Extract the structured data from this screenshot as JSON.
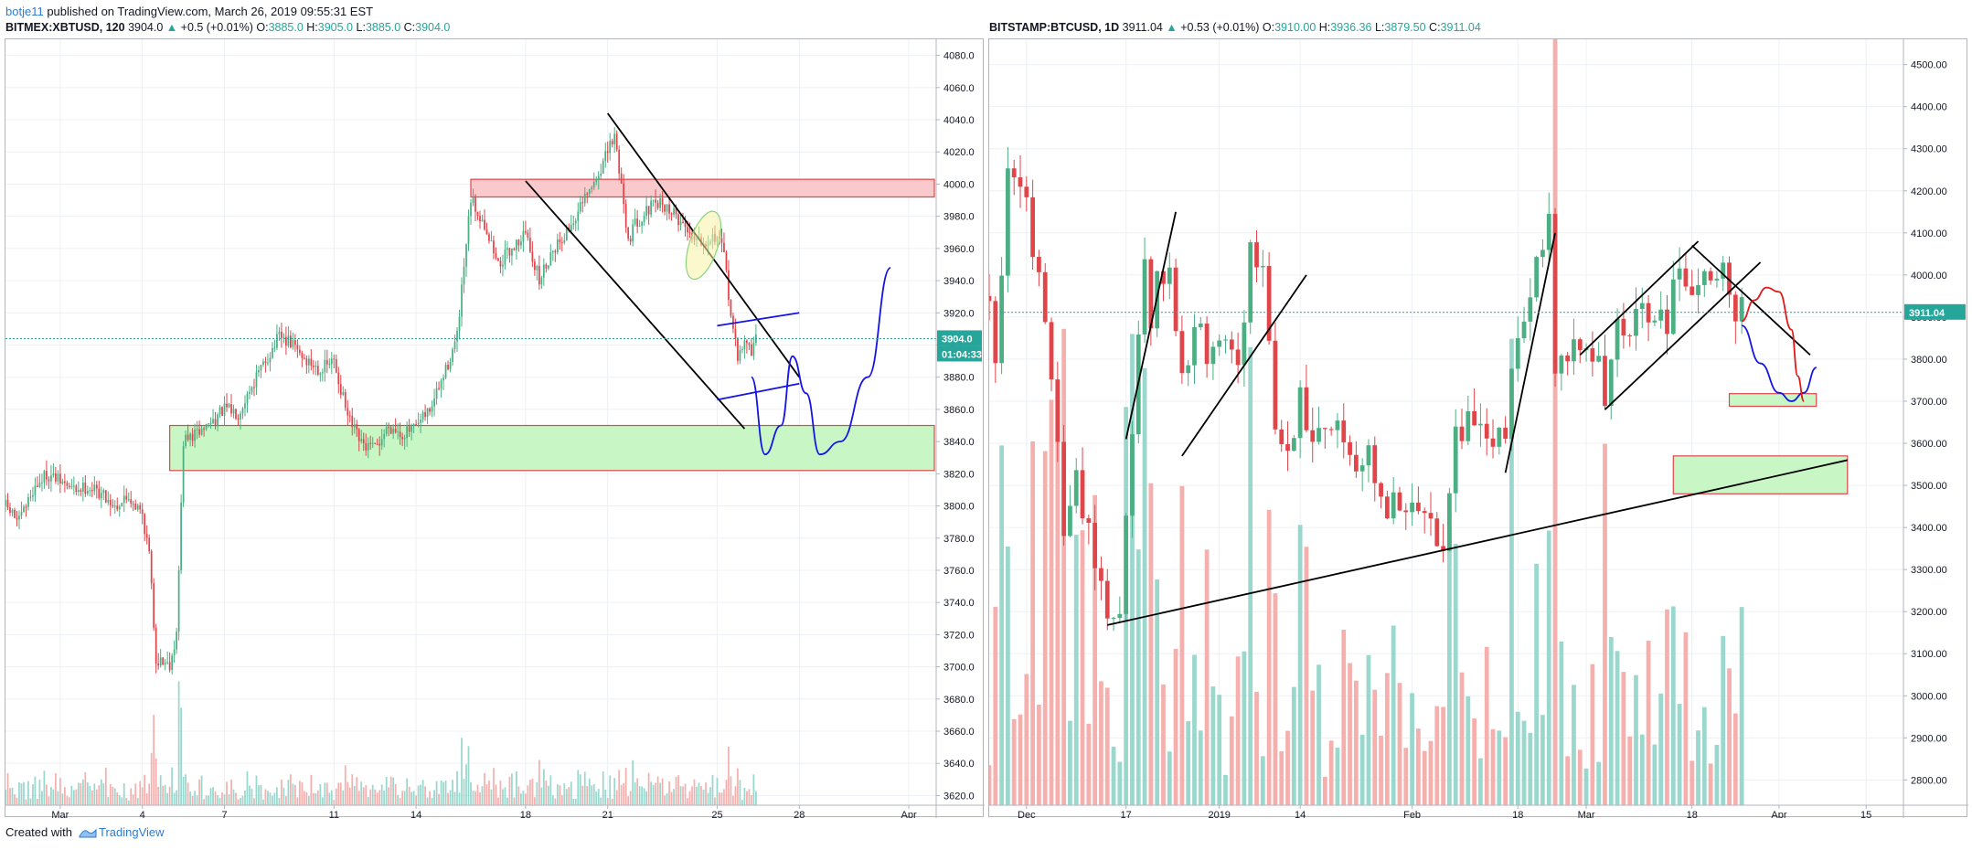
{
  "header": {
    "author": "botje11",
    "published_text": "published on TradingView.com, March 26, 2019 09:55:31 EST"
  },
  "footer": {
    "created_with": "Created with",
    "brand": "TradingView",
    "logo_icon": "tradingview-logo-icon"
  },
  "colors": {
    "up": "#26a69a",
    "down": "#ef5350",
    "up_bar": "#4caf83",
    "down_bar": "#e0454a",
    "grid": "#edf0f4",
    "border": "#b2b5be",
    "resistance_zone": "#f9c9cc",
    "support_zone": "#c8f7c5",
    "accent_blue": "#1414e6",
    "accent_red": "#e01818"
  },
  "chart_data": [
    {
      "type": "candlestick",
      "legend": {
        "symbol": "BITMEX:XBTUSD, 120",
        "last": "3904.0",
        "arrow": "▲",
        "change": "+0.5 (+0.01%)",
        "o_label": "O:",
        "o": "3885.0",
        "h_label": "H:",
        "h": "3905.0",
        "l_label": "L:",
        "l": "3885.0",
        "c_label": "C:",
        "c": "3904.0"
      },
      "x_tick_labels": [
        "Mar",
        "4",
        "7",
        "11",
        "14",
        "18",
        "21",
        "25",
        "28",
        "Apr"
      ],
      "x_tick_dates": [
        "2019-03-01",
        "2019-03-04",
        "2019-03-07",
        "2019-03-11",
        "2019-03-14",
        "2019-03-18",
        "2019-03-21",
        "2019-03-25",
        "2019-03-28",
        "2019-04-01"
      ],
      "y_ticks": [
        3620,
        3640,
        3660,
        3680,
        3700,
        3720,
        3740,
        3760,
        3780,
        3800,
        3820,
        3840,
        3860,
        3880,
        3900,
        3920,
        3940,
        3960,
        3980,
        4000,
        4020,
        4040,
        4060,
        4080
      ],
      "y_tick_labels": [
        "3620.0",
        "3640.0",
        "3660.0",
        "3680.0",
        "3700.0",
        "3720.0",
        "3740.0",
        "3760.0",
        "3780.0",
        "3800.0",
        "3820.0",
        "3840.0",
        "3860.0",
        "3880.0",
        "3900.0",
        "3920.0",
        "3940.0",
        "3960.0",
        "3980.0",
        "4000.0",
        "4020.0",
        "4040.0",
        "4060.0",
        "4080.0"
      ],
      "ylim": [
        3614,
        4090
      ],
      "xlim": [
        "2019-02-27",
        "2019-04-02"
      ],
      "last_price_label": "3904.0",
      "countdown_label": "01:04:33",
      "price_path": [
        [
          "2019-02-27 00:00",
          3800
        ],
        [
          "2019-02-27 12:00",
          3790
        ],
        [
          "2019-02-28 00:00",
          3810
        ],
        [
          "2019-02-28 12:00",
          3820
        ],
        [
          "2019-03-01 00:00",
          3815
        ],
        [
          "2019-03-01 12:00",
          3810
        ],
        [
          "2019-03-02 00:00",
          3812
        ],
        [
          "2019-03-02 12:00",
          3808
        ],
        [
          "2019-03-03 00:00",
          3800
        ],
        [
          "2019-03-03 12:00",
          3806
        ],
        [
          "2019-03-04 00:00",
          3795
        ],
        [
          "2019-03-04 06:00",
          3770
        ],
        [
          "2019-03-04 12:00",
          3705
        ],
        [
          "2019-03-05 00:00",
          3702
        ],
        [
          "2019-03-05 06:00",
          3720
        ],
        [
          "2019-03-05 12:00",
          3840
        ],
        [
          "2019-03-06 00:00",
          3845
        ],
        [
          "2019-03-06 12:00",
          3852
        ],
        [
          "2019-03-07 00:00",
          3860
        ],
        [
          "2019-03-07 12:00",
          3858
        ],
        [
          "2019-03-08 00:00",
          3875
        ],
        [
          "2019-03-08 12:00",
          3890
        ],
        [
          "2019-03-09 00:00",
          3905
        ],
        [
          "2019-03-09 12:00",
          3900
        ],
        [
          "2019-03-10 00:00",
          3890
        ],
        [
          "2019-03-10 12:00",
          3885
        ],
        [
          "2019-03-11 00:00",
          3890
        ],
        [
          "2019-03-11 12:00",
          3855
        ],
        [
          "2019-03-12 00:00",
          3838
        ],
        [
          "2019-03-12 12:00",
          3835
        ],
        [
          "2019-03-13 00:00",
          3850
        ],
        [
          "2019-03-13 12:00",
          3845
        ],
        [
          "2019-03-14 00:00",
          3848
        ],
        [
          "2019-03-14 12:00",
          3860
        ],
        [
          "2019-03-15 00:00",
          3880
        ],
        [
          "2019-03-15 12:00",
          3905
        ],
        [
          "2019-03-16 00:00",
          3990
        ],
        [
          "2019-03-16 12:00",
          3975
        ],
        [
          "2019-03-17 00:00",
          3950
        ],
        [
          "2019-03-17 12:00",
          3960
        ],
        [
          "2019-03-18 00:00",
          3970
        ],
        [
          "2019-03-18 12:00",
          3940
        ],
        [
          "2019-03-19 00:00",
          3960
        ],
        [
          "2019-03-19 12:00",
          3970
        ],
        [
          "2019-03-20 00:00",
          3985
        ],
        [
          "2019-03-20 12:00",
          4000
        ],
        [
          "2019-03-21 00:00",
          4020
        ],
        [
          "2019-03-21 06:00",
          4030
        ],
        [
          "2019-03-21 12:00",
          4000
        ],
        [
          "2019-03-21 18:00",
          3965
        ],
        [
          "2019-03-22 00:00",
          3975
        ],
        [
          "2019-03-22 12:00",
          3985
        ],
        [
          "2019-03-23 00:00",
          3988
        ],
        [
          "2019-03-23 12:00",
          3980
        ],
        [
          "2019-03-24 00:00",
          3970
        ],
        [
          "2019-03-24 12:00",
          3965
        ],
        [
          "2019-03-25 00:00",
          3968
        ],
        [
          "2019-03-25 06:00",
          3955
        ],
        [
          "2019-03-25 12:00",
          3920
        ],
        [
          "2019-03-25 18:00",
          3890
        ],
        [
          "2019-03-26 00:00",
          3905
        ],
        [
          "2019-03-26 06:00",
          3895
        ],
        [
          "2019-03-26 10:00",
          3904
        ]
      ],
      "annotations": {
        "resistance_zone": {
          "from": "2019-03-16",
          "to": "2019-04-02",
          "low": 3992,
          "high": 4003
        },
        "support_zone": {
          "from": "2019-03-05",
          "to": "2019-04-02",
          "low": 3822,
          "high": 3850
        },
        "trend_lines": [
          {
            "from": [
              "2019-03-21",
              4044
            ],
            "to": [
              "2019-03-28",
              3880
            ]
          },
          {
            "from": [
              "2019-03-18",
              4002
            ],
            "to": [
              "2019-03-26",
              3848
            ]
          }
        ],
        "channel_lines_blue": [
          {
            "from": [
              "2019-03-25",
              3912
            ],
            "to": [
              "2019-03-28",
              3920
            ]
          },
          {
            "from": [
              "2019-03-25",
              3866
            ],
            "to": [
              "2019-03-28",
              3876
            ]
          }
        ],
        "projection_blue": [
          [
            "2019-03-26 06:00",
            3880
          ],
          [
            "2019-03-26 18:00",
            3832
          ],
          [
            "2019-03-27 08:00",
            3850
          ],
          [
            "2019-03-27 18:00",
            3893
          ],
          [
            "2019-03-28 06:00",
            3870
          ],
          [
            "2019-03-28 18:00",
            3832
          ],
          [
            "2019-03-29 12:00",
            3840
          ],
          [
            "2019-03-30 12:00",
            3880
          ],
          [
            "2019-03-31 08:00",
            3948
          ]
        ],
        "highlight_ellipse": {
          "at": [
            "2019-03-24 12:00",
            3962
          ],
          "half_range": 22
        }
      }
    },
    {
      "type": "candlestick",
      "legend": {
        "symbol": "BITSTAMP:BTCUSD, 1D",
        "last": "3911.04",
        "arrow": "▲",
        "change": "+0.53 (+0.01%)",
        "o_label": "O:",
        "o": "3910.00",
        "h_label": "H:",
        "h": "3936.36",
        "l_label": "L:",
        "l": "3879.50",
        "c_label": "C:",
        "c": "3911.04"
      },
      "x_tick_labels": [
        "Dec",
        "17",
        "2019",
        "14",
        "Feb",
        "18",
        "Mar",
        "18",
        "Apr",
        "15"
      ],
      "x_tick_dates": [
        "2018-12-01",
        "2018-12-17",
        "2019-01-01",
        "2019-01-14",
        "2019-02-01",
        "2019-02-18",
        "2019-03-01",
        "2019-03-18",
        "2019-04-01",
        "2019-04-15"
      ],
      "y_ticks": [
        2800,
        2900,
        3000,
        3100,
        3200,
        3300,
        3400,
        3500,
        3600,
        3700,
        3800,
        3900,
        4000,
        4100,
        4200,
        4300,
        4400,
        4500
      ],
      "y_tick_labels": [
        "2800.00",
        "2900.00",
        "3000.00",
        "3100.00",
        "3200.00",
        "3300.00",
        "3400.00",
        "3500.00",
        "3600.00",
        "3700.00",
        "3800.00",
        "3900.00",
        "4000.00",
        "4100.00",
        "4200.00",
        "4300.00",
        "4400.00",
        "4500.00"
      ],
      "ylim": [
        2740,
        4560
      ],
      "xlim": [
        "2018-11-25",
        "2019-04-21"
      ],
      "last_price_label": "3911.04",
      "price_path": [
        [
          "2018-11-25",
          3950
        ],
        [
          "2018-11-26",
          3800
        ],
        [
          "2018-11-28",
          4250
        ],
        [
          "2018-11-29",
          4230
        ],
        [
          "2018-12-01",
          4180
        ],
        [
          "2018-12-03",
          3980
        ],
        [
          "2018-12-05",
          3720
        ],
        [
          "2018-12-07",
          3420
        ],
        [
          "2018-12-09",
          3500
        ],
        [
          "2018-12-11",
          3420
        ],
        [
          "2018-12-13",
          3260
        ],
        [
          "2018-12-15",
          3180
        ],
        [
          "2018-12-16",
          3210
        ],
        [
          "2018-12-18",
          3640
        ],
        [
          "2018-12-20",
          4030
        ],
        [
          "2018-12-21",
          3860
        ],
        [
          "2018-12-22",
          3980
        ],
        [
          "2018-12-24",
          3990
        ],
        [
          "2018-12-26",
          3780
        ],
        [
          "2018-12-28",
          3870
        ],
        [
          "2018-12-30",
          3820
        ],
        [
          "2019-01-01",
          3850
        ],
        [
          "2019-01-04",
          3810
        ],
        [
          "2019-01-06",
          4040
        ],
        [
          "2019-01-08",
          4020
        ],
        [
          "2019-01-10",
          3620
        ],
        [
          "2019-01-12",
          3580
        ],
        [
          "2019-01-14",
          3700
        ],
        [
          "2019-01-16",
          3640
        ],
        [
          "2019-01-19",
          3660
        ],
        [
          "2019-01-22",
          3580
        ],
        [
          "2019-01-25",
          3560
        ],
        [
          "2019-01-28",
          3440
        ],
        [
          "2019-01-31",
          3450
        ],
        [
          "2019-02-03",
          3420
        ],
        [
          "2019-02-06",
          3380
        ],
        [
          "2019-02-08",
          3640
        ],
        [
          "2019-02-10",
          3650
        ],
        [
          "2019-02-13",
          3600
        ],
        [
          "2019-02-16",
          3620
        ],
        [
          "2019-02-18",
          3890
        ],
        [
          "2019-02-20",
          3950
        ],
        [
          "2019-02-23",
          4130
        ],
        [
          "2019-02-24",
          3780
        ],
        [
          "2019-02-26",
          3820
        ],
        [
          "2019-02-28",
          3810
        ],
        [
          "2019-03-02",
          3820
        ],
        [
          "2019-03-04",
          3720
        ],
        [
          "2019-03-06",
          3860
        ],
        [
          "2019-03-08",
          3870
        ],
        [
          "2019-03-10",
          3910
        ],
        [
          "2019-03-12",
          3880
        ],
        [
          "2019-03-14",
          3900
        ],
        [
          "2019-03-16",
          4000
        ],
        [
          "2019-03-18",
          3990
        ],
        [
          "2019-03-20",
          4030
        ],
        [
          "2019-03-22",
          4000
        ],
        [
          "2019-03-24",
          3990
        ],
        [
          "2019-03-25",
          3910
        ],
        [
          "2019-03-26",
          3911
        ]
      ],
      "annotations": {
        "resistance_zone": null,
        "support_zone_small": {
          "from": "2019-03-24",
          "to": "2019-04-07",
          "low": 3688,
          "high": 3718
        },
        "support_zone_big": {
          "from": "2019-03-15",
          "to": "2019-04-12",
          "low": 3480,
          "high": 3570
        },
        "trend_lines": [
          {
            "from": [
              "2018-12-14",
              3168
            ],
            "to": [
              "2019-04-12",
              3560
            ]
          },
          {
            "from": [
              "2018-12-17",
              3610
            ],
            "to": [
              "2018-12-25",
              4150
            ]
          },
          {
            "from": [
              "2018-12-26",
              3570
            ],
            "to": [
              "2019-01-15",
              4000
            ]
          },
          {
            "from": [
              "2019-02-16",
              3530
            ],
            "to": [
              "2019-02-24",
              4100
            ]
          },
          {
            "from": [
              "2019-02-28",
              3810
            ],
            "to": [
              "2019-03-19",
              4080
            ]
          },
          {
            "from": [
              "2019-03-04",
              3680
            ],
            "to": [
              "2019-03-29",
              4030
            ]
          },
          {
            "from": [
              "2019-03-18",
              4070
            ],
            "to": [
              "2019-04-06",
              3810
            ]
          }
        ],
        "projection_blue": [
          [
            "2019-03-26",
            3880
          ],
          [
            "2019-03-29",
            3790
          ],
          [
            "2019-04-01",
            3720
          ],
          [
            "2019-04-03",
            3700
          ],
          [
            "2019-04-05",
            3720
          ],
          [
            "2019-04-07",
            3780
          ]
        ],
        "projection_red": [
          [
            "2019-03-26",
            3890
          ],
          [
            "2019-03-28",
            3940
          ],
          [
            "2019-03-30",
            3970
          ],
          [
            "2019-04-01",
            3960
          ],
          [
            "2019-04-03",
            3870
          ],
          [
            "2019-04-04",
            3760
          ],
          [
            "2019-04-05",
            3700
          ]
        ]
      }
    }
  ]
}
